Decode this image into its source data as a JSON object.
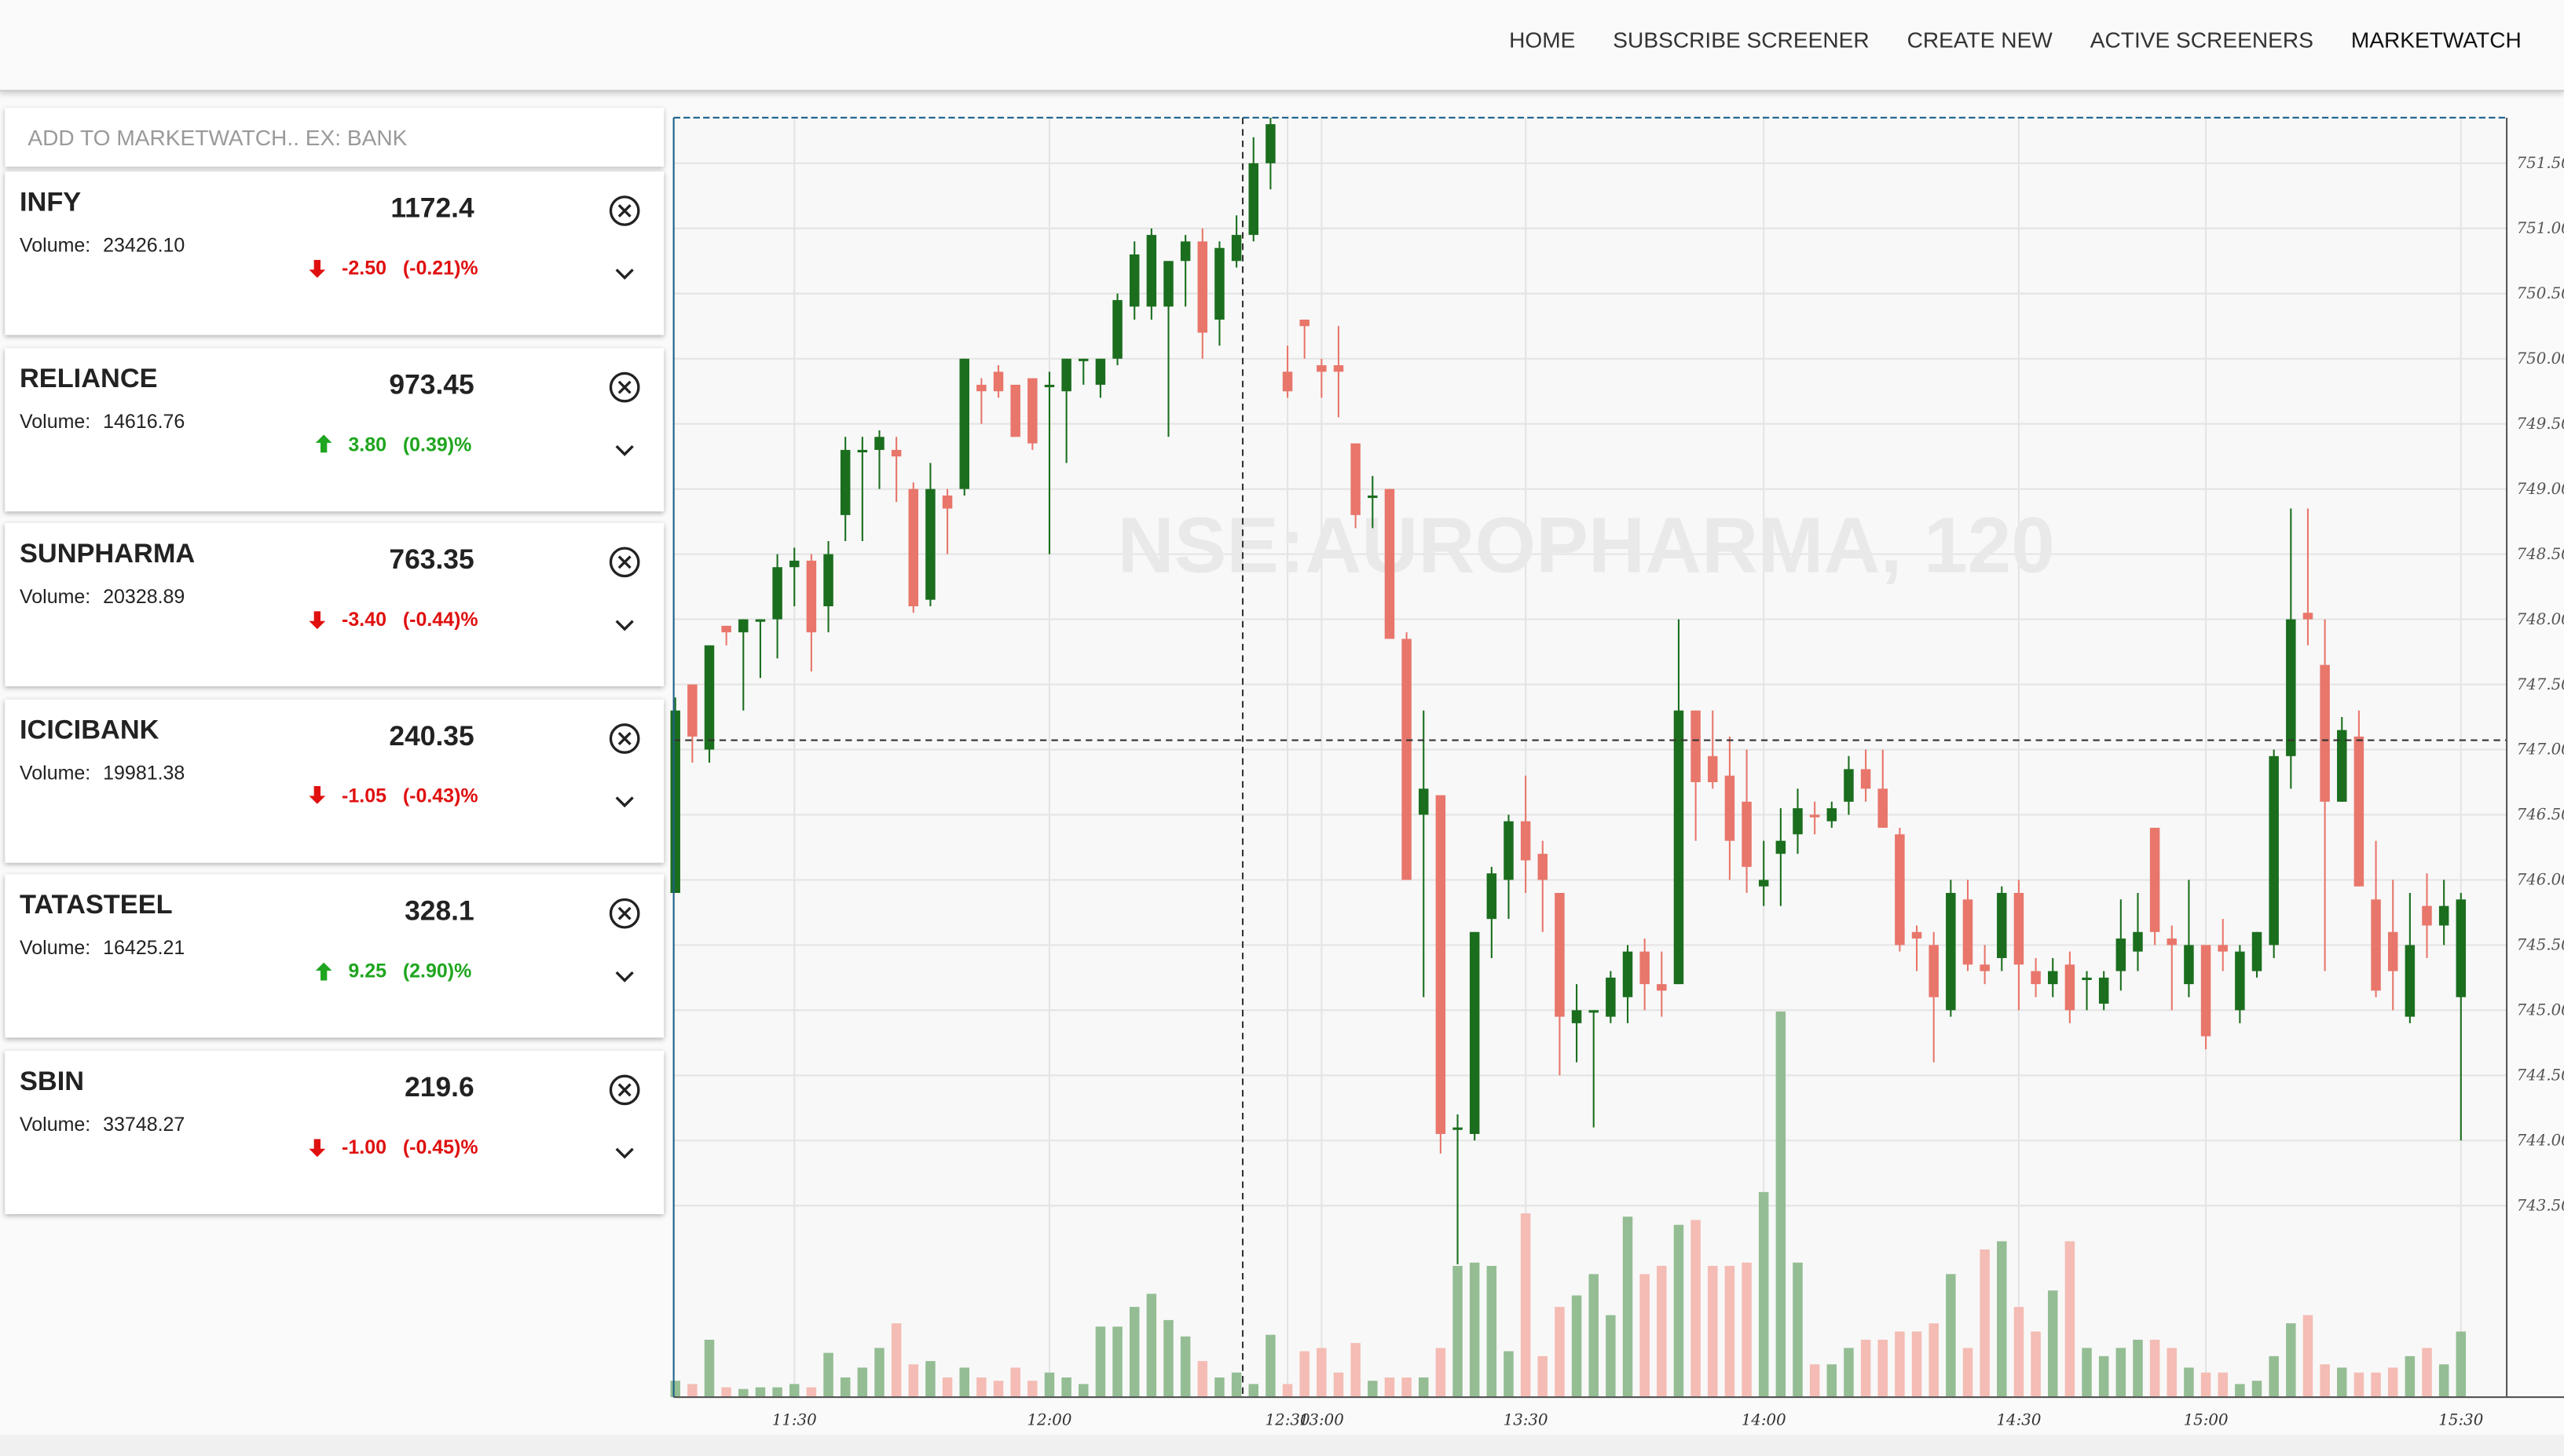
{
  "nav": {
    "items": [
      "HOME",
      "SUBSCRIBE SCREENER",
      "CREATE NEW",
      "ACTIVE SCREENERS",
      "MARKETWATCH"
    ]
  },
  "watchlist": {
    "placeholder": "ADD TO MARKETWATCH.. EX: BANK",
    "volume_label": "Volume:",
    "items": [
      {
        "name": "INFY",
        "price": "1172.4",
        "volume": "23426.10",
        "change": "-2.50",
        "change_pct": "(-0.21)%",
        "direction": "down"
      },
      {
        "name": "RELIANCE",
        "price": "973.45",
        "volume": "14616.76",
        "change": "3.80",
        "change_pct": "(0.39)%",
        "direction": "up"
      },
      {
        "name": "SUNPHARMA",
        "price": "763.35",
        "volume": "20328.89",
        "change": "-3.40",
        "change_pct": "(-0.44)%",
        "direction": "down"
      },
      {
        "name": "ICICIBANK",
        "price": "240.35",
        "volume": "19981.38",
        "change": "-1.05",
        "change_pct": "(-0.43)%",
        "direction": "down"
      },
      {
        "name": "TATASTEEL",
        "price": "328.1",
        "volume": "16425.21",
        "change": "9.25",
        "change_pct": "(2.90)%",
        "direction": "up"
      },
      {
        "name": "SBIN",
        "price": "219.6",
        "volume": "33748.27",
        "change": "-1.00",
        "change_pct": "(-0.45)%",
        "direction": "down"
      }
    ]
  },
  "chart_data": {
    "type": "candlestick",
    "watermark": "NSE:AUROPHARMA, 120",
    "up_color": "#1b6e1e",
    "down_color": "#e8766b",
    "volume_up_color": "#94bd94",
    "volume_down_color": "#f4bcb4",
    "ylim": [
      742.03,
      751.85
    ],
    "yticks": [
      {
        "value": 751.5,
        "label": "751.50"
      },
      {
        "value": 751,
        "label": "751.00"
      },
      {
        "value": 750.5,
        "label": "750.50"
      },
      {
        "value": 750,
        "label": "750.00"
      },
      {
        "value": 749.5,
        "label": "749.50"
      },
      {
        "value": 749,
        "label": "749.00"
      },
      {
        "value": 748.5,
        "label": "748.50"
      },
      {
        "value": 748,
        "label": "748.00"
      },
      {
        "value": 747.5,
        "label": "747.50"
      },
      {
        "value": 747,
        "label": "747.00"
      },
      {
        "value": 746.5,
        "label": "746.50"
      },
      {
        "value": 746,
        "label": "746.00"
      },
      {
        "value": 745.5,
        "label": "745.50"
      },
      {
        "value": 745,
        "label": "745.00"
      },
      {
        "value": 744.5,
        "label": "744.50"
      },
      {
        "value": 744,
        "label": "744.00"
      },
      {
        "value": 743.5,
        "label": "743.50"
      }
    ],
    "xticks": [
      {
        "value": 7,
        "label": "11:30"
      },
      {
        "value": 22,
        "label": "12:00"
      },
      {
        "value": 36,
        "label": "12:30"
      },
      {
        "value": 38,
        "label": "13:00"
      },
      {
        "value": 50,
        "label": "13:30"
      },
      {
        "value": 64,
        "label": "14:00"
      },
      {
        "value": 79,
        "label": "14:30"
      },
      {
        "value": 90,
        "label": "15:00"
      },
      {
        "value": 105,
        "label": "15:30"
      }
    ],
    "grid": true,
    "open": [
      745.9,
      747.5,
      747.0,
      747.95,
      747.9,
      748.0,
      748.0,
      748.4,
      748.45,
      748.1,
      748.8,
      749.3,
      749.3,
      749.3,
      749.0,
      748.15,
      748.95,
      749.0,
      749.8,
      749.9,
      749.8,
      749.85,
      749.8,
      749.75,
      750.0,
      749.8,
      750.0,
      750.4,
      750.4,
      750.4,
      750.75,
      750.9,
      750.3,
      750.75,
      750.95,
      751.5,
      749.9,
      750.3,
      749.95,
      749.95,
      749.35,
      748.95,
      749.0,
      747.85,
      746.5,
      746.65,
      744.1,
      744.05,
      745.7,
      746.0,
      746.45,
      746.2,
      745.9,
      744.9,
      745.0,
      744.95,
      745.1,
      745.45,
      745.2,
      745.2,
      747.3,
      746.95,
      746.8,
      746.6,
      745.95,
      746.2,
      746.35,
      746.5,
      746.45,
      746.6,
      746.85,
      746.7,
      746.35,
      745.6,
      745.5,
      745.0,
      745.85,
      745.35,
      745.4,
      745.9,
      745.3,
      745.2,
      745.35,
      745.25,
      745.05,
      745.3,
      745.45,
      746.4,
      745.55,
      745.2,
      745.5,
      745.5,
      745.0,
      745.3,
      745.5,
      746.95,
      748.05,
      747.65,
      746.6,
      747.1,
      745.85,
      745.6,
      744.95,
      745.8,
      745.65,
      745.1
    ],
    "high": [
      747.4,
      747.5,
      747.8,
      747.95,
      748.0,
      748.0,
      748.5,
      748.55,
      748.5,
      748.6,
      749.4,
      749.4,
      749.45,
      749.4,
      749.05,
      749.2,
      749.0,
      750.0,
      749.85,
      749.95,
      749.8,
      749.85,
      749.9,
      750.0,
      750.0,
      750.0,
      750.5,
      750.9,
      751.0,
      750.75,
      750.95,
      751.0,
      750.9,
      751.1,
      751.7,
      751.85,
      750.1,
      750.3,
      750.0,
      750.25,
      749.35,
      749.1,
      749.0,
      747.9,
      747.3,
      746.65,
      744.2,
      745.6,
      746.1,
      746.5,
      746.8,
      746.3,
      745.9,
      745.2,
      745.0,
      745.3,
      745.5,
      745.55,
      745.45,
      748.0,
      747.3,
      747.3,
      747.1,
      747.0,
      746.3,
      746.55,
      746.7,
      746.6,
      746.6,
      746.95,
      747.0,
      747.0,
      746.4,
      745.65,
      745.6,
      746.0,
      746.0,
      745.5,
      745.95,
      746.0,
      745.4,
      745.4,
      745.45,
      745.3,
      745.3,
      745.85,
      745.9,
      746.4,
      745.65,
      746.0,
      745.5,
      745.7,
      745.5,
      745.6,
      747.0,
      748.85,
      748.85,
      748.0,
      747.25,
      747.3,
      746.3,
      746.0,
      745.9,
      746.05,
      746.0,
      745.9
    ],
    "low": [
      745.9,
      746.9,
      746.9,
      747.8,
      747.3,
      747.55,
      747.7,
      748.1,
      747.6,
      747.9,
      748.6,
      748.6,
      749.0,
      748.9,
      748.05,
      748.1,
      748.5,
      748.95,
      749.5,
      749.7,
      749.4,
      749.3,
      748.5,
      749.2,
      749.8,
      749.7,
      749.95,
      750.3,
      750.3,
      749.4,
      750.4,
      750.0,
      750.1,
      750.7,
      750.9,
      751.3,
      749.7,
      750.0,
      749.7,
      749.55,
      748.7,
      748.7,
      747.85,
      746.0,
      745.1,
      743.9,
      743.05,
      744.0,
      745.4,
      745.7,
      745.9,
      745.6,
      744.5,
      744.6,
      744.1,
      744.9,
      744.9,
      745.0,
      744.95,
      745.2,
      746.3,
      746.7,
      746.0,
      745.9,
      745.8,
      745.8,
      746.2,
      746.35,
      746.4,
      746.5,
      746.6,
      746.4,
      745.45,
      745.3,
      744.6,
      744.95,
      745.3,
      745.2,
      745.3,
      745.0,
      745.1,
      745.1,
      744.9,
      745.0,
      745.0,
      745.15,
      745.3,
      745.5,
      745.0,
      745.1,
      744.7,
      745.3,
      744.9,
      745.25,
      745.4,
      746.7,
      747.8,
      745.3,
      746.6,
      745.95,
      745.1,
      745.0,
      744.9,
      745.4,
      745.5,
      744.0
    ],
    "close": [
      747.3,
      747.1,
      747.8,
      747.9,
      748.0,
      748.0,
      748.4,
      748.45,
      747.9,
      748.5,
      749.3,
      749.3,
      749.4,
      749.25,
      748.1,
      749.0,
      748.85,
      750.0,
      749.75,
      749.75,
      749.4,
      749.35,
      749.8,
      750.0,
      750.0,
      750.0,
      750.45,
      750.8,
      750.95,
      750.75,
      750.9,
      750.2,
      750.85,
      750.95,
      751.5,
      751.8,
      749.75,
      750.25,
      749.9,
      749.9,
      748.8,
      748.95,
      747.85,
      746.0,
      746.7,
      744.05,
      744.1,
      745.6,
      746.05,
      746.45,
      746.15,
      746.0,
      744.95,
      745.0,
      745.0,
      745.25,
      745.45,
      745.2,
      745.15,
      747.3,
      746.75,
      746.75,
      746.3,
      746.1,
      746.0,
      746.3,
      746.55,
      746.48,
      746.55,
      746.85,
      746.7,
      746.4,
      745.5,
      745.55,
      745.1,
      745.9,
      745.35,
      745.3,
      745.9,
      745.35,
      745.2,
      745.3,
      745.0,
      745.25,
      745.25,
      745.55,
      745.6,
      745.6,
      745.5,
      745.5,
      744.8,
      745.45,
      745.45,
      745.6,
      746.95,
      748.0,
      748.0,
      746.6,
      747.15,
      745.95,
      745.15,
      745.3,
      745.5,
      745.65,
      745.8,
      745.85
    ],
    "volume": [
      10,
      8,
      35,
      6,
      5,
      6,
      6,
      8,
      6,
      27,
      12,
      18,
      30,
      45,
      20,
      22,
      12,
      18,
      12,
      10,
      18,
      10,
      15,
      12,
      8,
      43,
      43,
      55,
      63,
      47,
      37,
      22,
      12,
      15,
      8,
      38,
      8,
      28,
      30,
      15,
      33,
      10,
      12,
      12,
      12,
      30,
      80,
      82,
      80,
      28,
      112,
      25,
      55,
      62,
      75,
      50,
      110,
      75,
      80,
      105,
      108,
      80,
      80,
      82,
      125,
      235,
      82,
      20,
      20,
      30,
      35,
      35,
      40,
      40,
      45,
      75,
      30,
      90,
      95,
      55,
      40,
      65,
      95,
      30,
      25,
      30,
      35,
      35,
      30,
      18,
      15,
      15,
      8,
      10,
      25,
      45,
      50,
      20,
      18,
      15,
      15,
      18,
      25,
      30,
      20,
      40
    ]
  }
}
